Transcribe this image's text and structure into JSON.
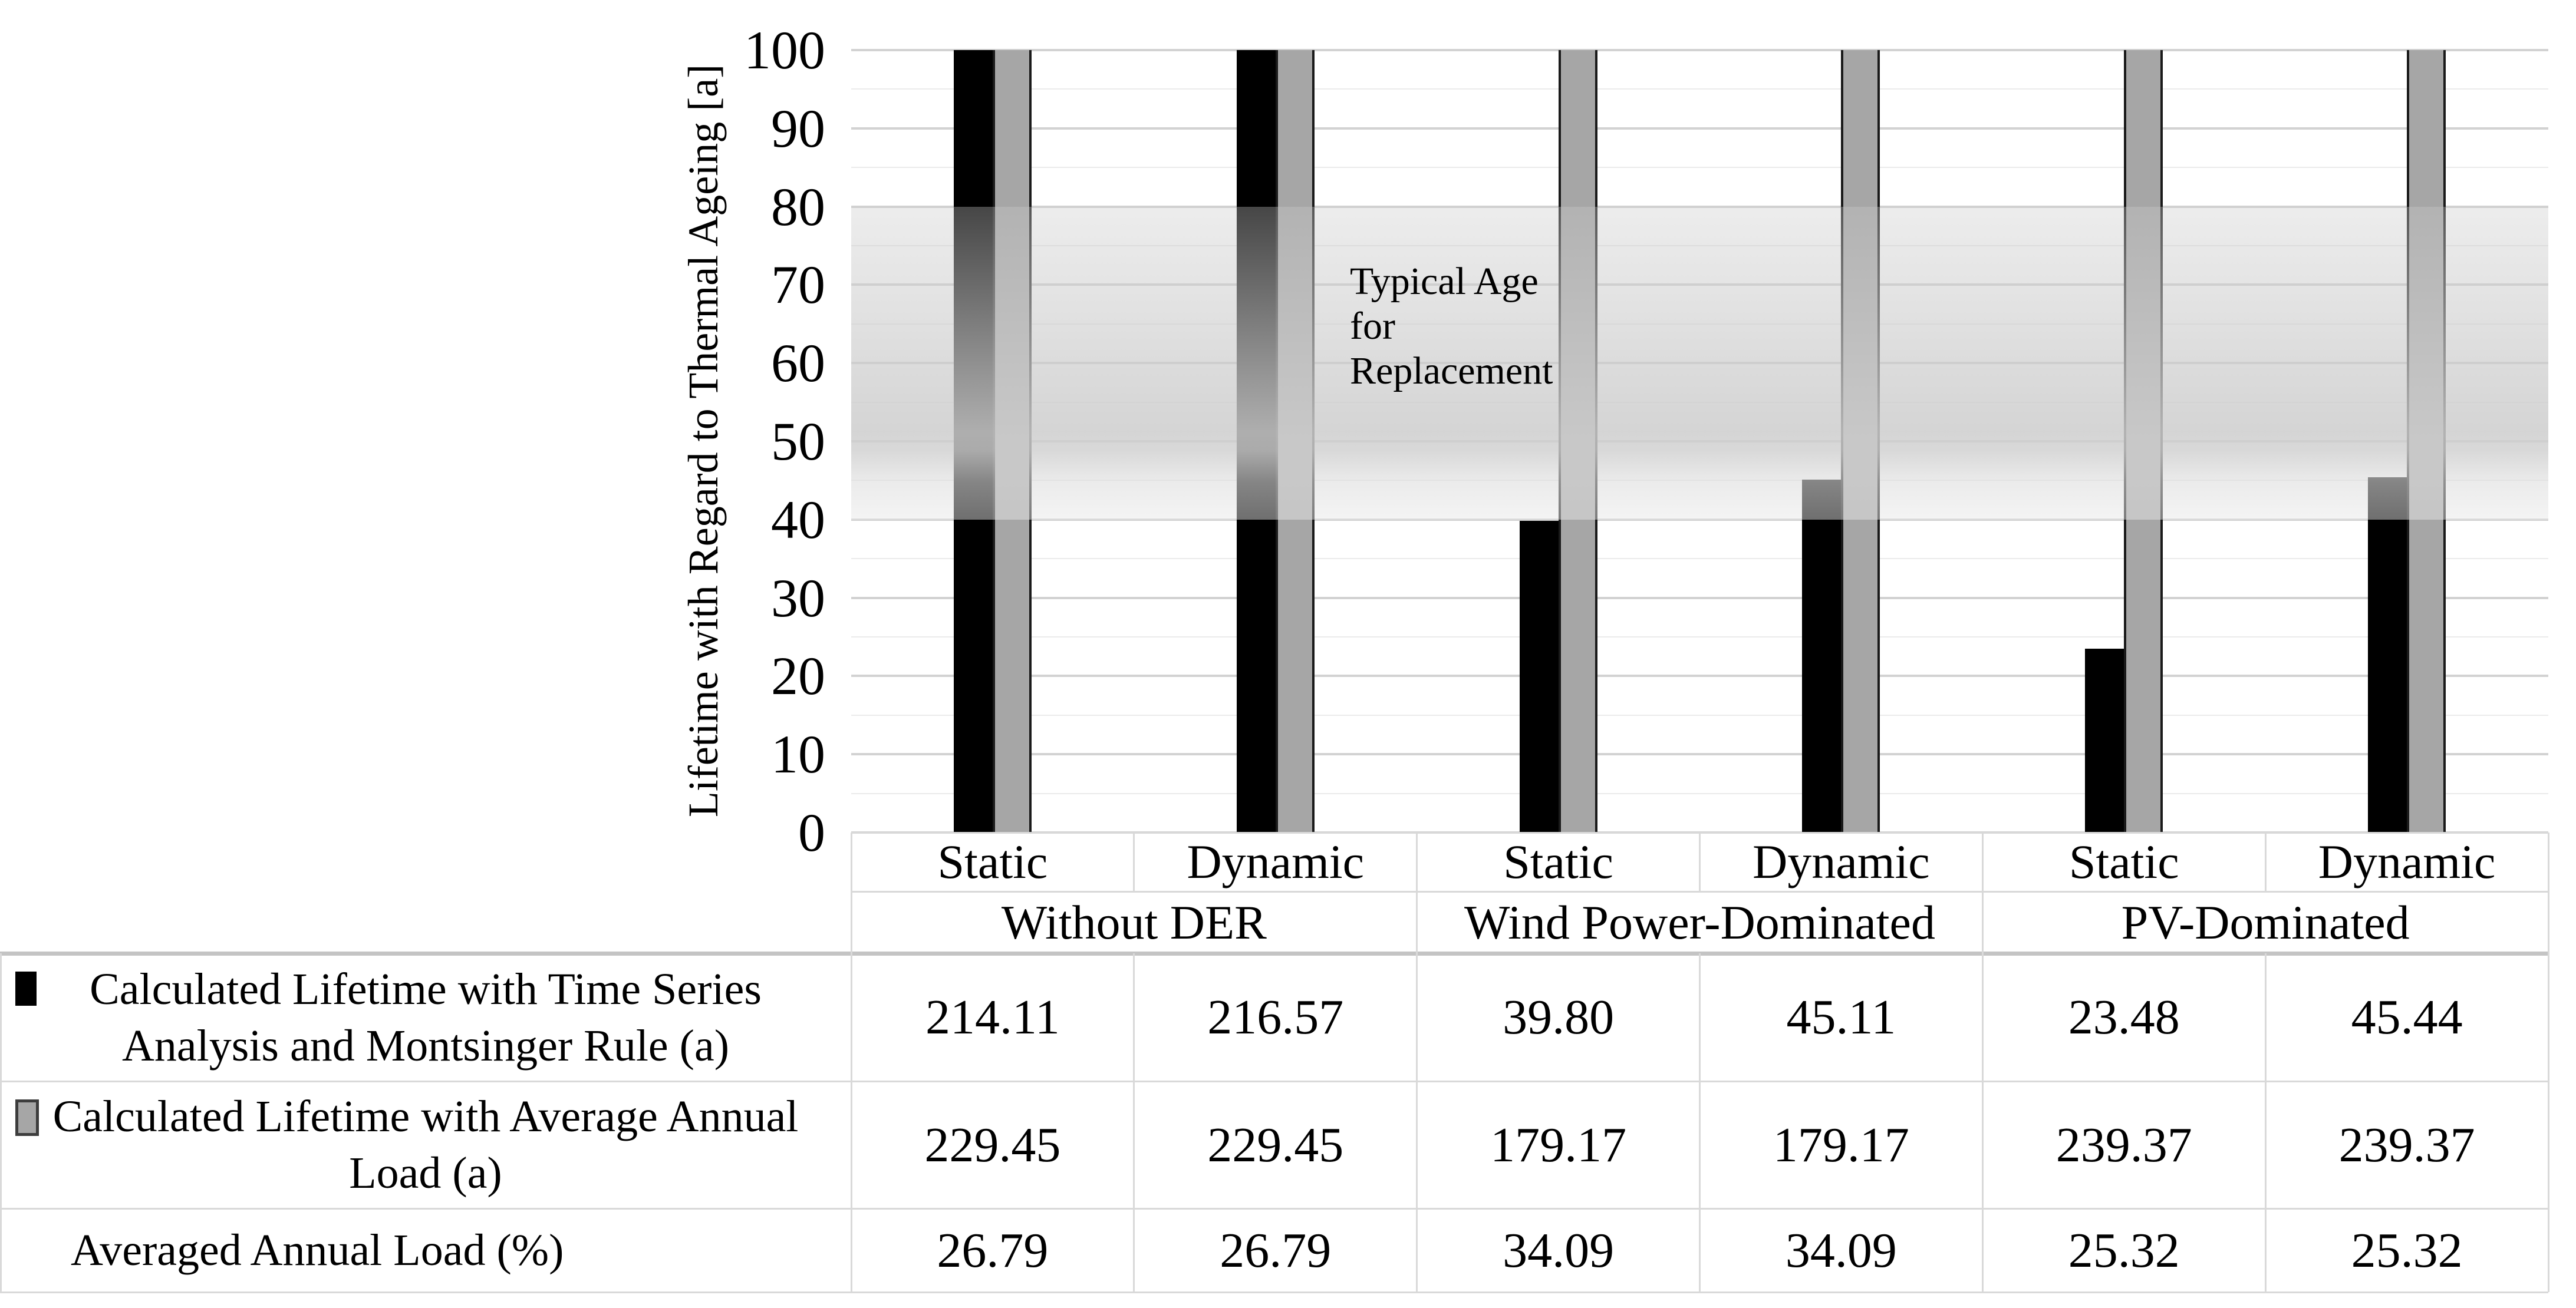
{
  "y_axis": {
    "label": "Lifetime with Regard to Thermal Ageing [a]",
    "ticks": [
      0,
      10,
      20,
      30,
      40,
      50,
      60,
      70,
      80,
      90,
      100
    ]
  },
  "x_axis": {
    "categories": [
      "Static",
      "Dynamic",
      "Static",
      "Dynamic",
      "Static",
      "Dynamic"
    ],
    "groups": [
      {
        "label": "Without DER",
        "span": 2
      },
      {
        "label": "Wind Power-Dominated",
        "span": 2
      },
      {
        "label": "PV-Dominated",
        "span": 2
      }
    ]
  },
  "chart_data": {
    "type": "bar",
    "title": "",
    "ylabel": "Lifetime with Regard to Thermal Ageing [a]",
    "ylim": [
      0,
      100
    ],
    "gridline_step": 5,
    "grid": "on",
    "legend_position": "table-left",
    "categories": [
      "Static",
      "Dynamic",
      "Static",
      "Dynamic",
      "Static",
      "Dynamic"
    ],
    "series": [
      {
        "name": "Calculated Lifetime with Time Series Analysis and Montsinger Rule (a)",
        "label_lines": [
          "Calculated Lifetime with Time Series",
          "Analysis and Montsinger Rule (a)"
        ],
        "color": "#000000",
        "values": [
          214.11,
          216.57,
          39.8,
          45.11,
          23.48,
          45.44
        ]
      },
      {
        "name": "Calculated Lifetime with Average Annual Load (a)",
        "label_lines": [
          "Calculated Lifetime with Average Annual",
          "Load (a)"
        ],
        "color": "#a6a6a6",
        "edge_color": "#1a1a1a",
        "values": [
          229.45,
          229.45,
          179.17,
          179.17,
          239.37,
          239.37
        ]
      }
    ],
    "table_extra_row": {
      "name": "Averaged Annual Load (%)",
      "values": [
        26.79,
        26.79,
        34.09,
        34.09,
        25.32,
        25.32
      ]
    },
    "annotation": {
      "lines": [
        "Typical Age",
        "for",
        "Replacement"
      ],
      "band_range": [
        40,
        80
      ]
    }
  },
  "colors": {
    "bar_black": "#000000",
    "bar_gray": "#a6a6a6",
    "gray_edge": "#1a1a1a",
    "grid_major": "#d2d2d2",
    "grid_minor": "#ebebeb",
    "border": "#d9d9d9",
    "border_thick": "#c4c4c4",
    "band_gray": "#d4d4d4"
  }
}
